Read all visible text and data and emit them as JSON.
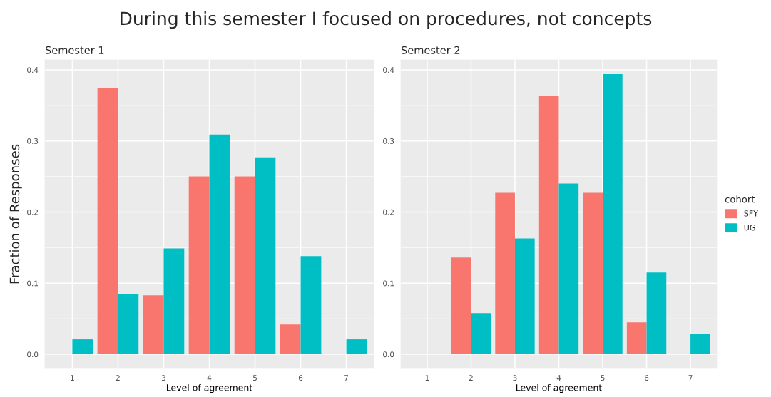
{
  "chart_data": [
    {
      "type": "bar",
      "title": "During this semester I focused on procedures, not concepts",
      "subtitle": "Semester 1",
      "xlabel": "Level of agreement",
      "ylabel": "Fraction of Responses",
      "categories": [
        "1",
        "2",
        "3",
        "4",
        "5",
        "6",
        "7"
      ],
      "ylim": [
        -0.02,
        0.414
      ],
      "yticks": [
        {
          "value": 0,
          "label": "0.0"
        },
        0.1,
        0.2,
        0.3,
        0.4
      ],
      "grid": true,
      "series": [
        {
          "color": "#f8766d",
          "values": [
            null,
            0.375,
            0.083,
            0.25,
            0.25,
            0.042,
            null
          ]
        },
        {
          "color": "#00bfc4",
          "values": [
            0.021,
            0.085,
            0.149,
            0.309,
            0.277,
            0.138,
            0.021
          ]
        }
      ]
    },
    {
      "type": "bar",
      "subtitle": "Semester 2",
      "xlabel": "Level of agreement",
      "legend_title": "cohort",
      "categories": [
        "1",
        "2",
        "3",
        "4",
        "5",
        "6",
        "7"
      ],
      "ylim": [
        -0.02,
        0.414
      ],
      "yticks": [
        {
          "value": 0,
          "label": "0.0"
        },
        0.1,
        0.2,
        0.3,
        0.4
      ],
      "grid": true,
      "legend": "right",
      "series": [
        {
          "name": "SFY",
          "color": "#f8766d",
          "values": [
            null,
            0.136,
            0.227,
            0.363,
            0.227,
            0.045,
            null
          ]
        },
        {
          "name": "UG",
          "color": "#00bfc4",
          "values": [
            null,
            0.058,
            0.163,
            0.24,
            0.394,
            0.115,
            0.029
          ]
        }
      ]
    }
  ]
}
